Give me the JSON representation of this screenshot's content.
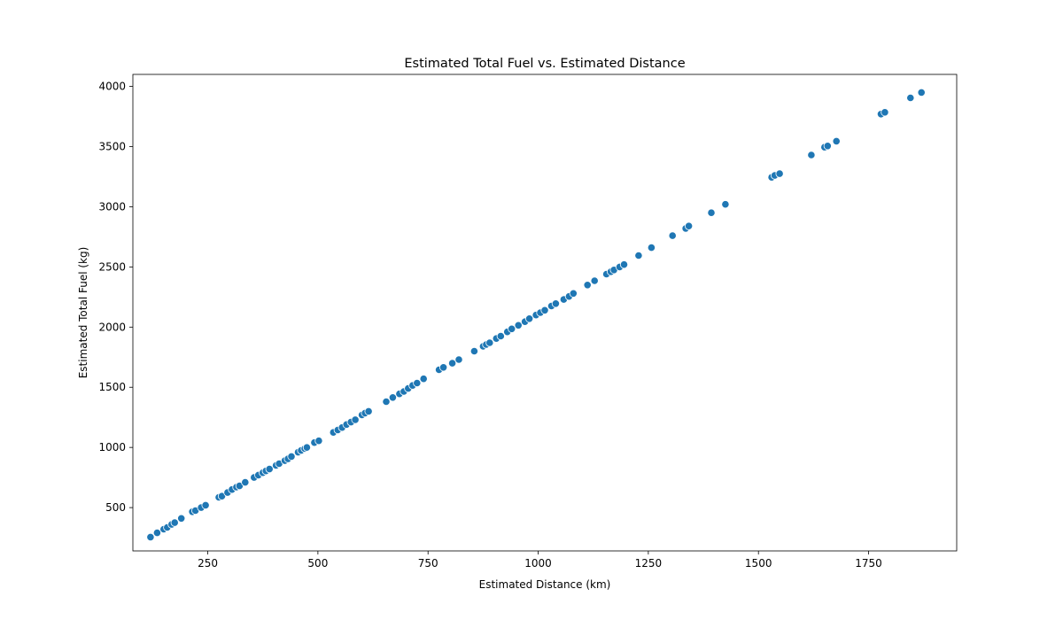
{
  "chart_data": {
    "type": "scatter",
    "title": "Estimated Total Fuel vs. Estimated Distance",
    "xlabel": "Estimated Distance (km)",
    "ylabel": "Estimated Total Fuel (kg)",
    "xlim": [
      80,
      1950
    ],
    "ylim": [
      140,
      4100
    ],
    "xticks": [
      250,
      500,
      750,
      1000,
      1250,
      1500,
      1750
    ],
    "yticks": [
      500,
      1000,
      1500,
      2000,
      2500,
      3000,
      3500,
      4000
    ],
    "grid": false,
    "legend": "none",
    "color": "#1f77b4",
    "x": [
      120,
      135,
      150,
      158,
      168,
      175,
      190,
      215,
      222,
      235,
      245,
      275,
      282,
      295,
      305,
      315,
      322,
      335,
      355,
      365,
      375,
      382,
      390,
      405,
      412,
      425,
      432,
      440,
      455,
      462,
      470,
      475,
      492,
      502,
      535,
      545,
      555,
      565,
      575,
      585,
      600,
      607,
      615,
      655,
      670,
      685,
      695,
      705,
      715,
      725,
      740,
      775,
      785,
      805,
      820,
      855,
      875,
      882,
      890,
      905,
      915,
      930,
      940,
      955,
      970,
      980,
      995,
      1005,
      1015,
      1030,
      1040,
      1058,
      1070,
      1080,
      1112,
      1128,
      1155,
      1165,
      1172,
      1185,
      1195,
      1228,
      1257,
      1305,
      1335,
      1342,
      1393,
      1425,
      1530,
      1537,
      1548,
      1620,
      1650,
      1657,
      1677,
      1778,
      1787,
      1845,
      1870
    ],
    "y": [
      255,
      290,
      320,
      335,
      360,
      375,
      410,
      465,
      475,
      500,
      520,
      585,
      595,
      625,
      650,
      670,
      680,
      710,
      750,
      770,
      790,
      805,
      820,
      850,
      865,
      890,
      905,
      925,
      960,
      975,
      990,
      1000,
      1040,
      1055,
      1125,
      1145,
      1165,
      1190,
      1210,
      1230,
      1270,
      1285,
      1300,
      1380,
      1415,
      1445,
      1465,
      1490,
      1515,
      1535,
      1570,
      1645,
      1665,
      1700,
      1730,
      1800,
      1840,
      1855,
      1870,
      1905,
      1925,
      1960,
      1985,
      2015,
      2045,
      2070,
      2100,
      2120,
      2140,
      2175,
      2195,
      2230,
      2255,
      2280,
      2350,
      2385,
      2440,
      2460,
      2475,
      2500,
      2520,
      2595,
      2660,
      2760,
      2820,
      2840,
      2950,
      3020,
      3245,
      3260,
      3275,
      3430,
      3495,
      3505,
      3545,
      3770,
      3785,
      3905,
      3950
    ],
    "xticklabels": [
      "250",
      "500",
      "750",
      "1000",
      "1250",
      "1500",
      "1750"
    ],
    "yticklabels": [
      "500",
      "1000",
      "1500",
      "2000",
      "2500",
      "3000",
      "3500",
      "4000"
    ]
  }
}
